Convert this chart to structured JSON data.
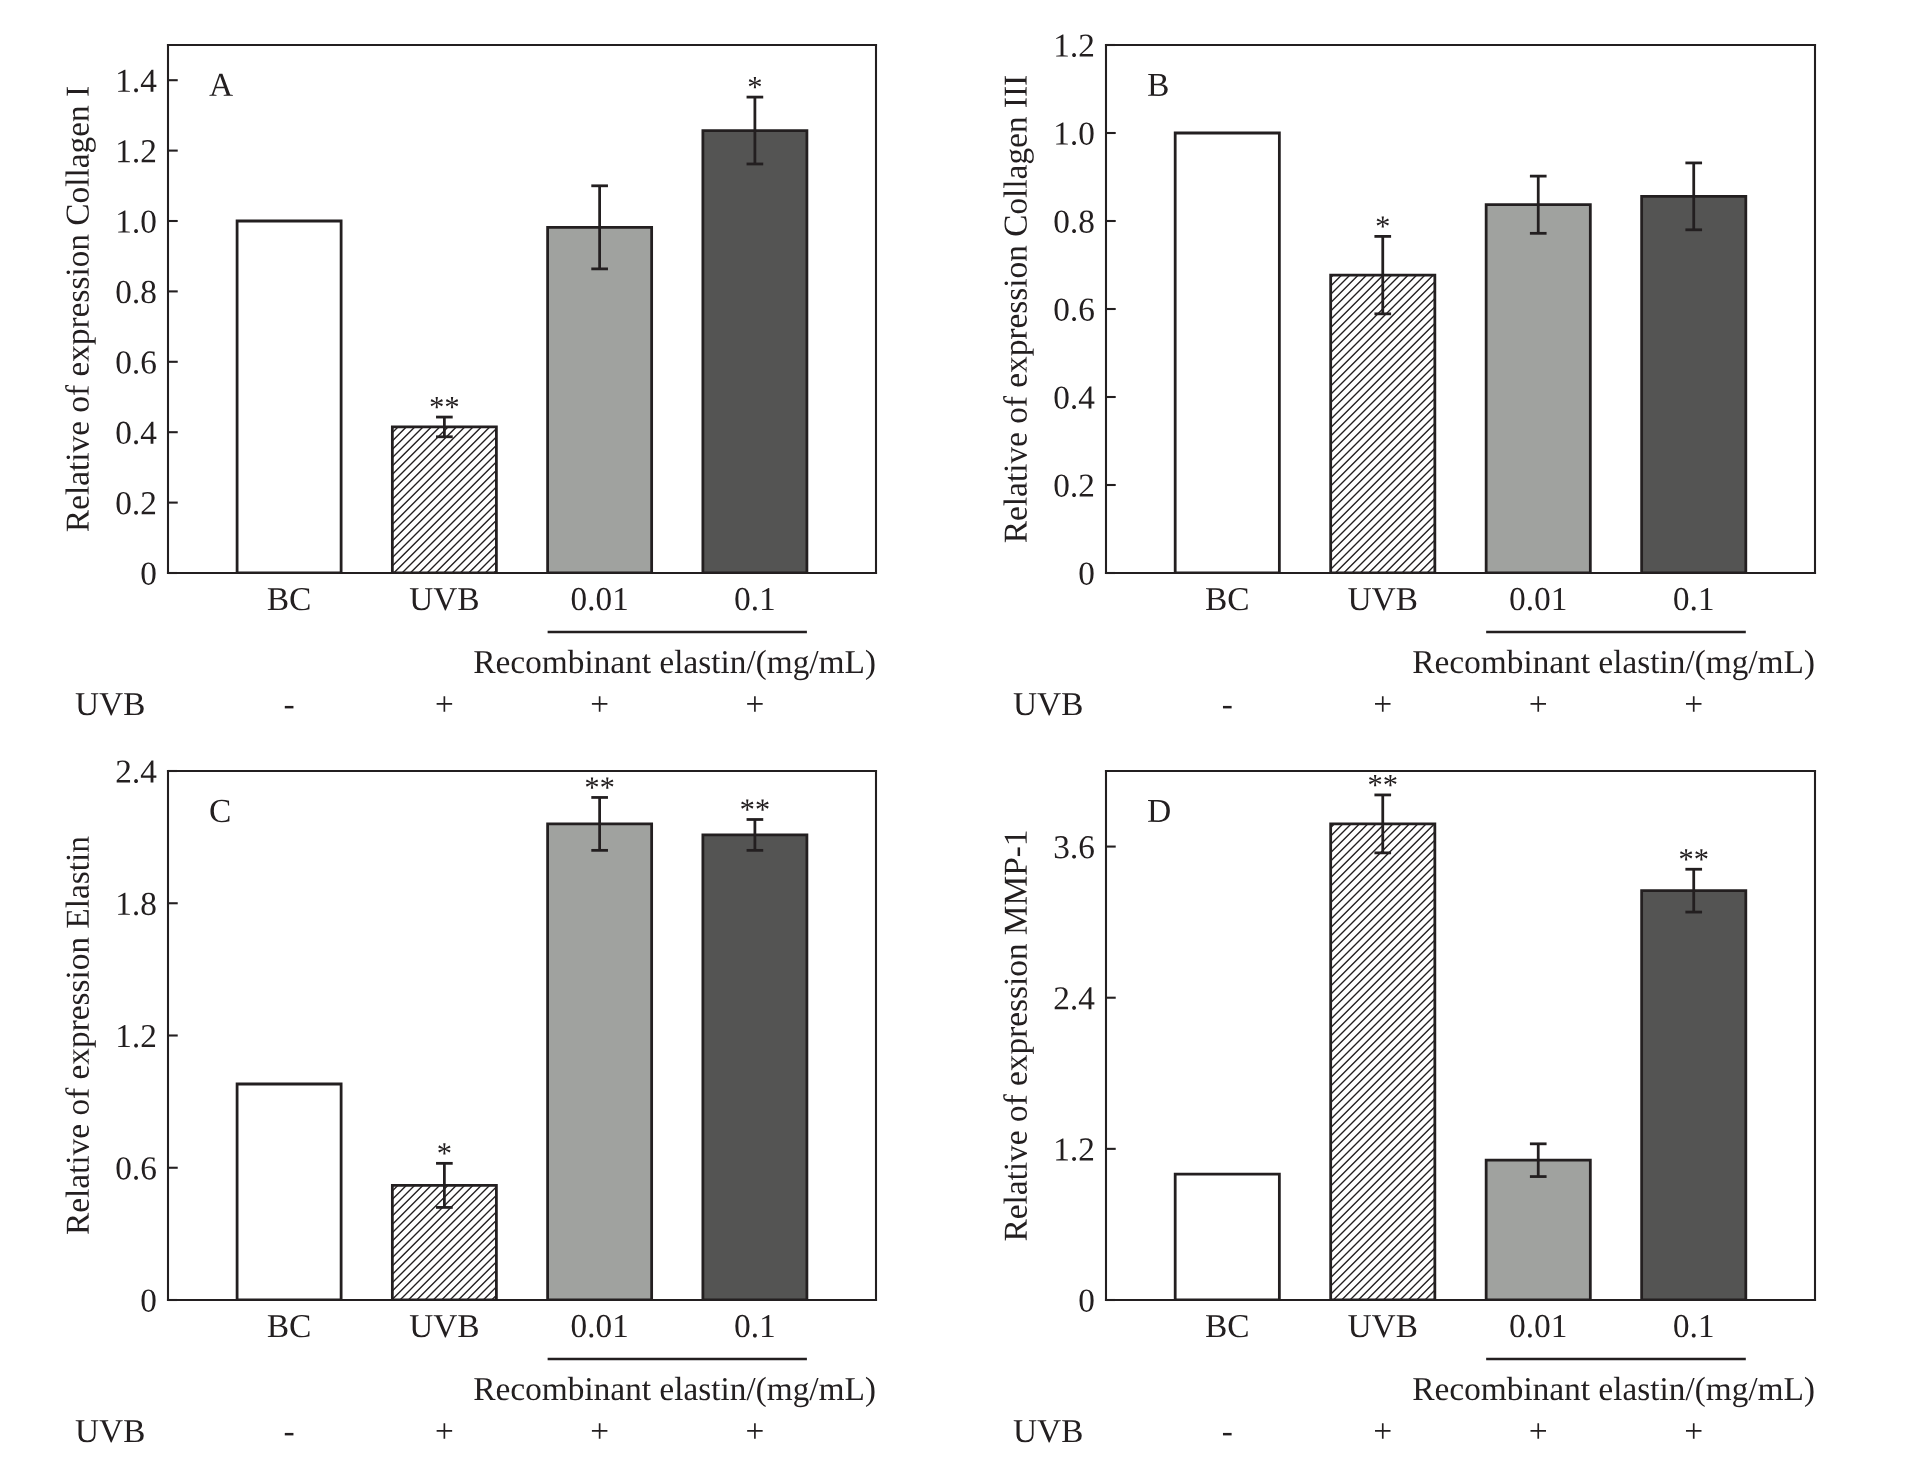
{
  "chart_data": [
    {
      "type": "bar",
      "title": "A",
      "ylabel": "Relative of expression Collagen I",
      "xlabel": "Recombinant elastin/(mg/mL)",
      "categories": [
        "BC",
        "UVB",
        "0.01",
        "0.1"
      ],
      "values": [
        1.0,
        0.415,
        0.982,
        1.257
      ],
      "errors": [
        null,
        0.028,
        0.118,
        0.095
      ],
      "value_labels": [
        null,
        "**",
        null,
        "*"
      ],
      "colors": [
        "#ffffff",
        "#ffffff",
        "#a0a29f",
        "#545453"
      ],
      "ylim": [
        0,
        1.5
      ],
      "yticks": [
        0,
        0.2,
        0.4,
        0.6,
        0.8,
        {
          "value": 1,
          "label": "1.0"
        },
        1.2,
        1.4
      ],
      "annotations": [
        "UVB",
        "-",
        "+",
        "+",
        "+"
      ]
    },
    {
      "type": "bar",
      "title": "B",
      "ylabel": "Relative of expression Collagen III",
      "xlabel": "Recombinant elastin/(mg/mL)",
      "categories": [
        "BC",
        "UVB",
        "0.01",
        "0.1"
      ],
      "values": [
        1.0,
        0.677,
        0.837,
        0.856
      ],
      "errors": [
        null,
        0.088,
        0.065,
        0.076
      ],
      "value_labels": [
        null,
        "*",
        null,
        null
      ],
      "colors": [
        "#ffffff",
        "#ffffff",
        "#a0a29f",
        "#545453"
      ],
      "ylim": [
        0,
        1.2
      ],
      "yticks": [
        0,
        0.2,
        0.4,
        0.6,
        0.8,
        {
          "value": 1,
          "label": "1.0"
        },
        1.2
      ],
      "annotations": [
        "UVB",
        "-",
        "+",
        "+",
        "+"
      ]
    },
    {
      "type": "bar",
      "title": "C",
      "ylabel": "Relative of expression Elastin",
      "xlabel": "Recombinant elastin/(mg/mL)",
      "categories": [
        "BC",
        "UVB",
        "0.01",
        "0.1"
      ],
      "values": [
        0.98,
        0.52,
        2.16,
        2.11
      ],
      "errors": [
        null,
        0.1,
        0.12,
        0.07
      ],
      "value_labels": [
        null,
        "*",
        "**",
        "**"
      ],
      "colors": [
        "#ffffff",
        "#ffffff",
        "#a0a29f",
        "#545453"
      ],
      "ylim": [
        0,
        2.4
      ],
      "yticks": [
        0,
        0.6,
        1.2,
        1.8,
        2.4
      ],
      "annotations": [
        "UVB",
        "-",
        "+",
        "+",
        "+"
      ]
    },
    {
      "type": "bar",
      "title": "D",
      "ylabel": "Relative of expression MMP-1",
      "xlabel": "Recombinant elastin/(mg/mL)",
      "categories": [
        "BC",
        "UVB",
        "0.01",
        "0.1"
      ],
      "values": [
        1.0,
        3.78,
        1.11,
        3.25
      ],
      "errors": [
        null,
        0.23,
        0.13,
        0.17
      ],
      "value_labels": [
        null,
        "**",
        null,
        "**"
      ],
      "colors": [
        "#ffffff",
        "#ffffff",
        "#a0a29f",
        "#545453"
      ],
      "ylim": [
        0,
        4.2
      ],
      "yticks": [
        0,
        1.2,
        2.4,
        3.6
      ],
      "annotations": [
        "UVB",
        "-",
        "+",
        "+",
        "+"
      ]
    }
  ]
}
